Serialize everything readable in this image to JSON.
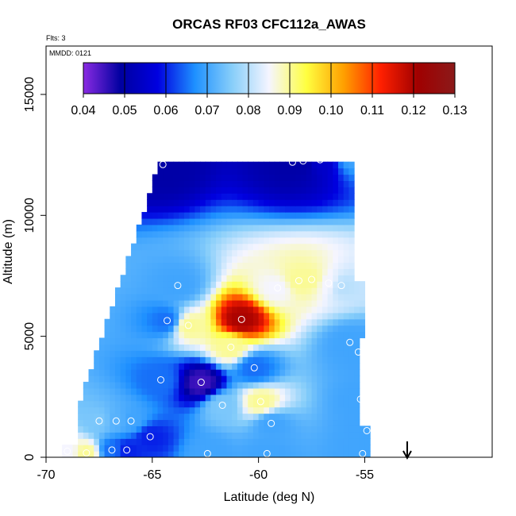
{
  "chart_data": {
    "type": "heatmap",
    "title": "ORCAS RF03 CFC112a_AWAS",
    "flights_label": "Flts: 3",
    "date_label": "MMDD: 0121",
    "xlabel": "Latitude (deg N)",
    "ylabel": "Altitude (m)",
    "xlim": [
      -70,
      -49
    ],
    "ylim": [
      0,
      17000
    ],
    "x_ticks": [
      -70,
      -65,
      -60,
      -55
    ],
    "x_tick_labels": [
      "-70",
      "-65",
      "-60",
      "-55"
    ],
    "y_ticks": [
      0,
      5000,
      10000,
      15000
    ],
    "y_tick_labels": [
      "0",
      "5000",
      "10000",
      "15000"
    ],
    "colorbar": {
      "ticks": [
        0.04,
        0.05,
        0.06,
        0.07,
        0.08,
        0.09,
        0.1,
        0.11,
        0.12,
        0.13
      ],
      "tick_labels": [
        "0.04",
        "0.05",
        "0.06",
        "0.07",
        "0.08",
        "0.09",
        "0.10",
        "0.11",
        "0.12",
        "0.13"
      ],
      "range": [
        0.04,
        0.13
      ],
      "colors": [
        "#8a2be2",
        "#0000a0",
        "#0000e0",
        "#1e90ff",
        "#87cefa",
        "#f5f5ff",
        "#ffff40",
        "#ffa000",
        "#ff2000",
        "#a00000",
        "#8b1a1a"
      ]
    },
    "grid": false,
    "legend": "colorbar-top",
    "arrow_marker_x": -53,
    "samples": [
      {
        "x": -69.0,
        "y": 250,
        "value": 0.085
      },
      {
        "x": -68.1,
        "y": 180,
        "value": 0.09
      },
      {
        "x": -67.5,
        "y": 1500,
        "value": 0.075
      },
      {
        "x": -66.7,
        "y": 1500,
        "value": 0.072
      },
      {
        "x": -66.0,
        "y": 1500,
        "value": 0.07
      },
      {
        "x": -66.9,
        "y": 300,
        "value": 0.065
      },
      {
        "x": -66.2,
        "y": 300,
        "value": 0.06
      },
      {
        "x": -65.1,
        "y": 850,
        "value": 0.06
      },
      {
        "x": -64.6,
        "y": 3200,
        "value": 0.065
      },
      {
        "x": -64.3,
        "y": 5650,
        "value": 0.065
      },
      {
        "x": -63.3,
        "y": 5450,
        "value": 0.09
      },
      {
        "x": -62.7,
        "y": 3100,
        "value": 0.045
      },
      {
        "x": -61.7,
        "y": 2150,
        "value": 0.075
      },
      {
        "x": -61.3,
        "y": 4550,
        "value": 0.09
      },
      {
        "x": -60.8,
        "y": 5700,
        "value": 0.12
      },
      {
        "x": -60.2,
        "y": 3700,
        "value": 0.065
      },
      {
        "x": -59.9,
        "y": 2300,
        "value": 0.09
      },
      {
        "x": -59.4,
        "y": 1400,
        "value": 0.07
      },
      {
        "x": -63.8,
        "y": 7100,
        "value": 0.07
      },
      {
        "x": -59.1,
        "y": 7000,
        "value": 0.085
      },
      {
        "x": -58.1,
        "y": 7300,
        "value": 0.09
      },
      {
        "x": -57.5,
        "y": 7350,
        "value": 0.09
      },
      {
        "x": -56.7,
        "y": 7200,
        "value": 0.085
      },
      {
        "x": -56.1,
        "y": 7100,
        "value": 0.08
      },
      {
        "x": -55.7,
        "y": 4750,
        "value": 0.07
      },
      {
        "x": -55.3,
        "y": 4350,
        "value": 0.07
      },
      {
        "x": -55.2,
        "y": 2400,
        "value": 0.07
      },
      {
        "x": -54.9,
        "y": 1100,
        "value": 0.07
      },
      {
        "x": -55.1,
        "y": 150,
        "value": 0.07
      },
      {
        "x": -59.6,
        "y": 150,
        "value": 0.07
      },
      {
        "x": -62.4,
        "y": 150,
        "value": 0.07
      },
      {
        "x": -64.5,
        "y": 12100,
        "value": 0.05
      },
      {
        "x": -58.4,
        "y": 12200,
        "value": 0.05
      },
      {
        "x": -57.9,
        "y": 12250,
        "value": 0.05
      },
      {
        "x": -57.1,
        "y": 12300,
        "value": 0.055
      },
      {
        "x": -55.6,
        "y": 12500,
        "value": 0.07
      }
    ]
  }
}
